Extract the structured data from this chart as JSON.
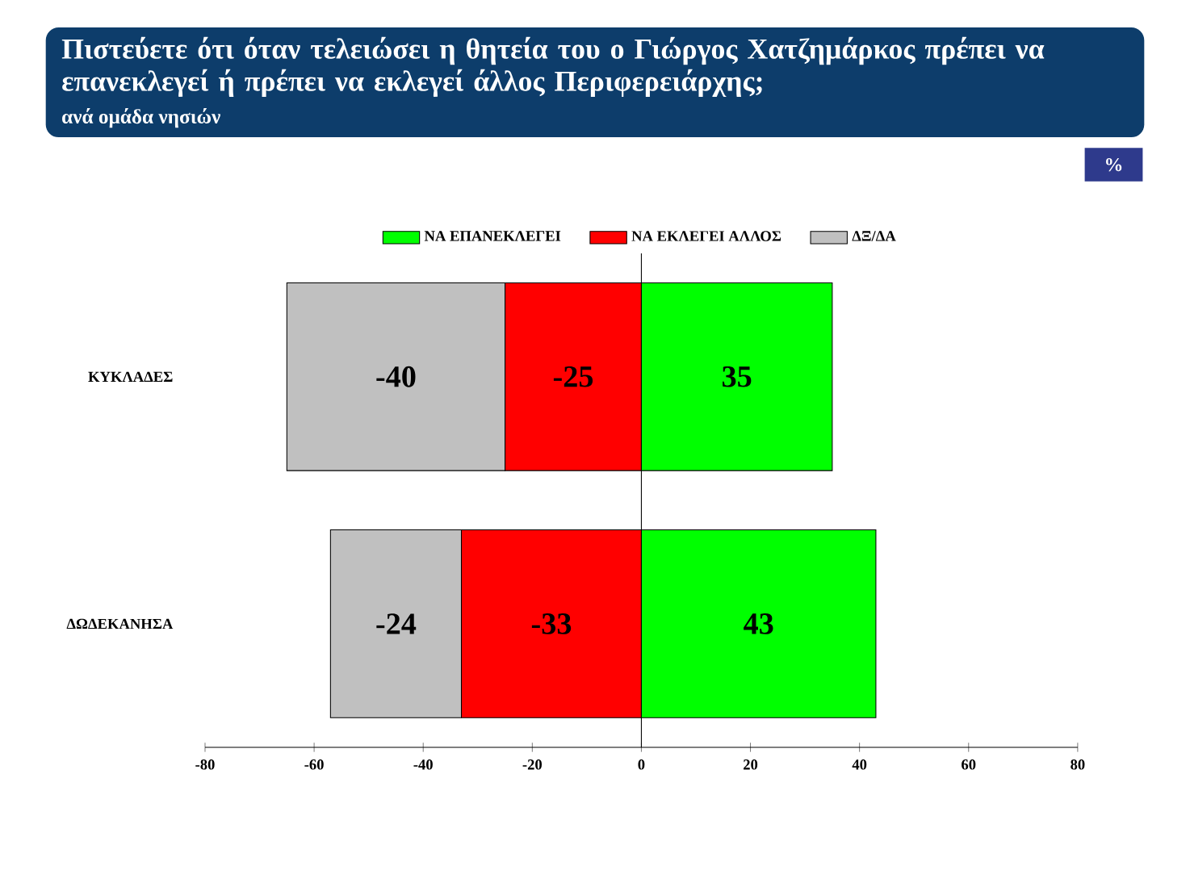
{
  "chart_data": {
    "type": "bar",
    "orientation": "horizontal",
    "stacked": true,
    "title": "Πιστεύετε ότι όταν τελειώσει η θητεία του ο Γιώργος Χατζημάρκος πρέπει να επανεκλεγεί ή πρέπει να εκλεγεί άλλος Περιφερειάρχης;",
    "subtitle": "ανά ομάδα νησιών",
    "annotations": [
      "%"
    ],
    "categories": [
      "ΚΥΚΛΑΔΕΣ",
      "ΔΩΔΕΚΑΝΗΣΑ"
    ],
    "series": [
      {
        "name": "ΝΑ ΕΠΑΝΕΚΛΕΓΕΙ",
        "color": "#00ff00",
        "values": [
          35,
          43
        ]
      },
      {
        "name": "ΝΑ ΕΚΛΕΓΕΙ ΑΛΛΟΣ",
        "color": "#ff0000",
        "values": [
          -25,
          -33
        ]
      },
      {
        "name": "ΔΞ/ΔΑ",
        "color": "#c0c0c0",
        "values": [
          -40,
          -24
        ]
      }
    ],
    "xlim": [
      -80,
      80
    ],
    "xticks": [
      -80,
      -60,
      -40,
      -20,
      0,
      20,
      40,
      60,
      80
    ],
    "data_labels": true,
    "legend": "top"
  }
}
